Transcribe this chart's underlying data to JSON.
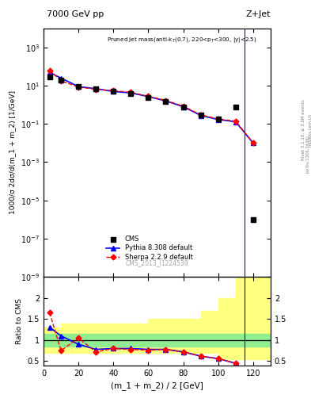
{
  "title_left": "7000 GeV pp",
  "title_right": "Z+Jet",
  "annotation": "Pruned jet mass(anti-k$_T$(0.7), 220<p$_T$<300, |y|<2.5)",
  "watermark": "CMS_2013_I1224539",
  "ylabel_main": "1000/σ 2dσ/d(m_1 + m_2) [1/GeV]",
  "ylabel_ratio": "Ratio to CMS",
  "xlabel": "(m_1 + m_2) / 2 [GeV]",
  "right_label": "Rivet 3.1.10, ≥ 3.6M events",
  "arxiv_label": "[arXiv:1306.3436]",
  "mcplots_label": "mcplots.cern.ch",
  "cms_x": [
    3.5,
    10,
    20,
    30,
    40,
    50,
    60,
    70,
    80,
    90,
    100,
    110,
    120
  ],
  "cms_y": [
    30,
    20,
    9,
    7,
    5,
    4,
    2.5,
    1.5,
    0.8,
    0.3,
    0.18,
    0.8,
    1e-06
  ],
  "pythia_x": [
    3.5,
    10,
    20,
    30,
    40,
    50,
    60,
    70,
    80,
    90,
    100,
    110,
    120
  ],
  "pythia_y": [
    50,
    25,
    9,
    7,
    5,
    4.2,
    2.7,
    1.6,
    0.8,
    0.28,
    0.17,
    0.13,
    0.01
  ],
  "sherpa_x": [
    3.5,
    10,
    20,
    30,
    40,
    50,
    60,
    70,
    80,
    90,
    100,
    110,
    120
  ],
  "sherpa_y": [
    65,
    18,
    8.5,
    6.5,
    5.5,
    4.5,
    2.8,
    1.7,
    0.85,
    0.3,
    0.18,
    0.14,
    0.01
  ],
  "ratio_pythia_x": [
    3.5,
    10,
    20,
    30,
    40,
    50,
    60,
    70,
    80,
    90,
    100,
    110,
    115
  ],
  "ratio_pythia_y": [
    1.3,
    1.1,
    0.9,
    0.78,
    0.8,
    0.8,
    0.78,
    0.78,
    0.72,
    0.62,
    0.56,
    0.45,
    0.05
  ],
  "ratio_sherpa_x": [
    3.5,
    10,
    20,
    30,
    40,
    50,
    60,
    70,
    80,
    90,
    100,
    110,
    115
  ],
  "ratio_sherpa_y": [
    1.65,
    0.75,
    1.05,
    0.72,
    0.8,
    0.78,
    0.76,
    0.78,
    0.72,
    0.62,
    0.56,
    0.45,
    0.05
  ],
  "band_x": [
    0,
    10,
    20,
    30,
    40,
    50,
    60,
    70,
    80,
    90,
    100,
    110,
    130
  ],
  "band_green_lo": [
    0.85,
    0.85,
    0.85,
    0.85,
    0.85,
    0.85,
    0.85,
    0.85,
    0.85,
    0.85,
    0.85,
    0.85,
    0.85
  ],
  "band_green_hi": [
    1.15,
    1.15,
    1.15,
    1.15,
    1.15,
    1.15,
    1.15,
    1.15,
    1.15,
    1.15,
    1.15,
    1.15,
    1.15
  ],
  "band_yellow_lo": [
    0.7,
    0.7,
    0.7,
    0.7,
    0.7,
    0.7,
    0.7,
    0.7,
    0.7,
    0.7,
    0.55,
    0.55,
    0.55
  ],
  "band_yellow_hi": [
    1.3,
    1.4,
    1.4,
    1.4,
    1.4,
    1.4,
    1.5,
    1.5,
    1.5,
    1.7,
    2.0,
    2.5,
    2.5
  ],
  "cms_color": "#000000",
  "pythia_color": "#0000ff",
  "sherpa_color": "#ff0000",
  "green_band_color": "#90ee90",
  "yellow_band_color": "#ffff80",
  "xlim": [
    0,
    130
  ],
  "ylim_main_lo": 1e-09,
  "ylim_main_hi": 10000.0,
  "ylim_ratio": [
    0.4,
    2.5
  ],
  "ratio_yticks": [
    0.5,
    1.0,
    1.5,
    2.0
  ],
  "ratio_ytick_labels": [
    "0.5",
    "1",
    "1.5",
    "2"
  ],
  "vline_x": 115,
  "legend_entries": [
    "CMS",
    "Pythia 8.308 default",
    "Sherpa 2.2.9 default"
  ]
}
